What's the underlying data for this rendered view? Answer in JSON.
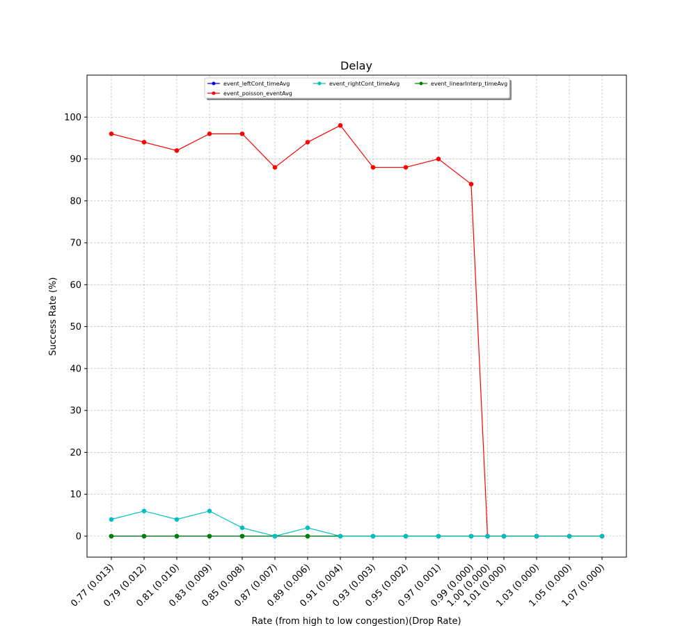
{
  "chart_data": {
    "type": "line",
    "title": "Delay",
    "xlabel": "Rate (from high to low congestion)(Drop Rate)",
    "ylabel": "Success Rate (%)",
    "ylim": [
      -5,
      110
    ],
    "yticks": [
      0,
      10,
      20,
      30,
      40,
      50,
      60,
      70,
      80,
      90,
      100
    ],
    "grid": true,
    "legend_position": "upper center",
    "x": [
      0.77,
      0.79,
      0.81,
      0.83,
      0.85,
      0.87,
      0.89,
      0.91,
      0.93,
      0.95,
      0.97,
      0.99,
      1.0,
      1.01,
      1.03,
      1.05,
      1.07
    ],
    "x_tick_positions": [
      0.77,
      0.79,
      0.81,
      0.83,
      0.85,
      0.87,
      0.89,
      0.91,
      0.93,
      0.95,
      0.97,
      0.99,
      1.0,
      1.01,
      1.03,
      1.05,
      1.07
    ],
    "x_tick_labels": [
      "0.77 (0.013)",
      "0.79 (0.012)",
      "0.81 (0.010)",
      "0.83 (0.009)",
      "0.85 (0.008)",
      "0.87 (0.007)",
      "0.89 (0.006)",
      "0.91 (0.004)",
      "0.93 (0.003)",
      "0.95 (0.002)",
      "0.97 (0.001)",
      "0.99 (0.000)",
      "1.00 (0.000)",
      "1.01 (0.000)",
      "1.03 (0.000)",
      "1.05 (0.000)",
      "1.07 (0.000)"
    ],
    "series": [
      {
        "name": "event_leftCont_timeAvg",
        "color": "#0000ff",
        "values": [
          0,
          0,
          0,
          0,
          0,
          0,
          0,
          0,
          0,
          0,
          0,
          0,
          0,
          0,
          0,
          0,
          0
        ]
      },
      {
        "name": "event_linearInterp_timeAvg",
        "color": "#008000",
        "values": [
          0,
          0,
          0,
          0,
          0,
          0,
          0,
          0,
          0,
          0,
          0,
          0,
          0,
          0,
          0,
          0,
          0
        ]
      },
      {
        "name": "event_poisson_eventAvg",
        "color": "#ff0000",
        "values": [
          96,
          94,
          92,
          96,
          96,
          88,
          94,
          98,
          88,
          88,
          90,
          84,
          0,
          0,
          0,
          0,
          0
        ]
      },
      {
        "name": "event_rightCont_timeAvg",
        "color": "#00bfbf",
        "values": [
          4,
          6,
          4,
          6,
          2,
          0,
          2,
          0,
          0,
          0,
          0,
          0,
          0,
          0,
          0,
          0,
          0
        ]
      }
    ],
    "legend_order": [
      0,
      2,
      3,
      1
    ]
  }
}
